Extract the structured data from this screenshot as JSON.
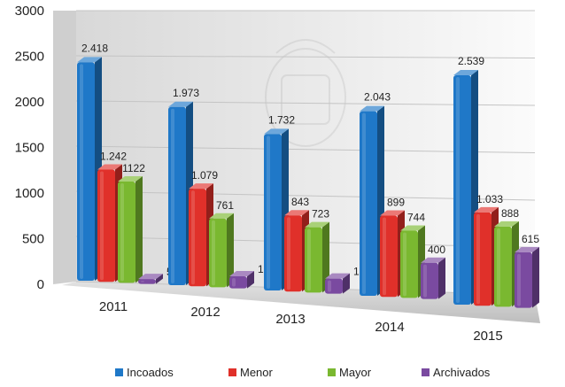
{
  "chart_data": {
    "type": "bar",
    "title": "",
    "xlabel": "",
    "ylabel": "",
    "ylim": [
      0,
      3000
    ],
    "yticks": [
      "0",
      "500",
      "1000",
      "1500",
      "2000",
      "2500",
      "3000"
    ],
    "categories": [
      "2011",
      "2012",
      "2013",
      "2014",
      "2015"
    ],
    "legend_position": "bottom",
    "series": [
      {
        "name": "Incoados",
        "color": "#1f78c8",
        "values": [
          2418,
          1973,
          1732,
          2043,
          2539
        ],
        "labels": [
          "2.418",
          "1.973",
          "1.732",
          "2.043",
          "2.539"
        ]
      },
      {
        "name": "Menor",
        "color": "#e0302a",
        "values": [
          1242,
          1079,
          843,
          899,
          1033
        ],
        "labels": [
          "1.242",
          "1.079",
          "843",
          "899",
          "1.033"
        ]
      },
      {
        "name": "Mayor",
        "color": "#7ab830",
        "values": [
          1122,
          761,
          723,
          744,
          888
        ],
        "labels": [
          "1122",
          "761",
          "723",
          "744",
          "888"
        ]
      },
      {
        "name": "Archivados",
        "color": "#7a4aa0",
        "values": [
          54,
          133,
          166,
          400,
          615
        ],
        "labels": [
          "54",
          "133",
          "166",
          "400",
          "615"
        ]
      }
    ]
  }
}
